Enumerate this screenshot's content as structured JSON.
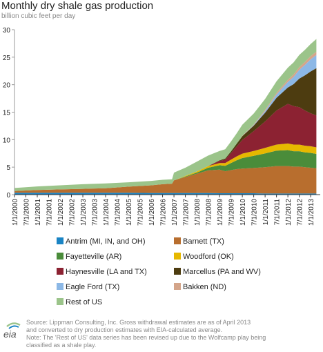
{
  "title": "Monthly dry shale gas production",
  "subtitle": "billion cubic feet per day",
  "logo_text": "eia",
  "footer": {
    "source_line1": "Source: Lippman Consulting, Inc. Gross withdrawal estimates are as of April 2013",
    "source_line2": "and converted to dry production estimates with EIA-calculated average.",
    "note_line1": "Note: The 'Rest of US' data series has been revised up due to the Wolfcamp play being",
    "note_line2": "classified as a shale play."
  },
  "chart_data": {
    "type": "area",
    "stacked": true,
    "title": "Monthly dry shale gas production",
    "ylabel": "billion cubic feet per day",
    "ylim": [
      0,
      30
    ],
    "yticks": [
      0,
      5,
      10,
      15,
      20,
      25,
      30
    ],
    "x_tick_labels": [
      "1/1/2000",
      "7/1/2000",
      "1/1/2001",
      "7/1/2001",
      "1/1/2002",
      "7/1/2002",
      "1/1/2003",
      "7/1/2003",
      "1/1/2004",
      "7/1/2004",
      "1/1/2005",
      "7/1/2005",
      "1/1/2006",
      "7/1/2006",
      "1/1/2007",
      "7/1/2007",
      "1/1/2008",
      "7/1/2008",
      "1/1/2009",
      "7/1/2009",
      "1/1/2010",
      "7/1/2010",
      "1/1/2011",
      "7/1/2011",
      "1/1/2012",
      "7/1/2012",
      "1/1/2013"
    ],
    "x": [
      "2000-01",
      "2001-01",
      "2002-01",
      "2003-01",
      "2004-01",
      "2005-01",
      "2006-01",
      "2006-07",
      "2006-12",
      "2007-01",
      "2007-07",
      "2008-01",
      "2008-07",
      "2009-01",
      "2009-04",
      "2009-07",
      "2009-10",
      "2010-01",
      "2010-07",
      "2011-01",
      "2011-07",
      "2012-01",
      "2012-04",
      "2012-07",
      "2012-10",
      "2013-01",
      "2013-04"
    ],
    "series": [
      {
        "name": "Antrim (MI, IN, and OH)",
        "color": "#1a84c4",
        "values": [
          0.35,
          0.35,
          0.35,
          0.35,
          0.35,
          0.35,
          0.3,
          0.3,
          0.3,
          0.3,
          0.3,
          0.3,
          0.3,
          0.25,
          0.25,
          0.25,
          0.25,
          0.25,
          0.25,
          0.2,
          0.2,
          0.2,
          0.2,
          0.2,
          0.2,
          0.2,
          0.2
        ]
      },
      {
        "name": "Barnett (TX)",
        "color": "#b86e2e",
        "values": [
          0.3,
          0.5,
          0.6,
          0.7,
          0.8,
          1.1,
          1.4,
          1.6,
          1.7,
          2.3,
          2.9,
          3.5,
          4.1,
          4.3,
          4.0,
          4.2,
          4.4,
          4.5,
          4.6,
          4.8,
          5.0,
          5.0,
          4.9,
          4.9,
          4.8,
          4.7,
          4.6
        ]
      },
      {
        "name": "Fayetteville (AR)",
        "color": "#4a8c3a",
        "values": [
          0,
          0,
          0,
          0,
          0,
          0,
          0,
          0,
          0,
          0,
          0.1,
          0.2,
          0.5,
          0.8,
          1.0,
          1.3,
          1.6,
          1.9,
          2.2,
          2.5,
          2.8,
          2.9,
          2.8,
          2.8,
          2.7,
          2.7,
          2.6
        ]
      },
      {
        "name": "Woodford (OK)",
        "color": "#e6b800",
        "values": [
          0,
          0,
          0,
          0,
          0,
          0,
          0,
          0,
          0,
          0,
          0.1,
          0.2,
          0.3,
          0.4,
          0.5,
          0.6,
          0.7,
          0.8,
          0.9,
          1.0,
          1.1,
          1.2,
          1.2,
          1.2,
          1.2,
          1.2,
          1.2
        ]
      },
      {
        "name": "Haynesville (LA and TX)",
        "color": "#8c2232",
        "values": [
          0,
          0,
          0,
          0,
          0,
          0,
          0,
          0,
          0,
          0,
          0,
          0,
          0,
          0.4,
          0.6,
          1.2,
          1.8,
          2.5,
          3.6,
          4.8,
          6.2,
          7.2,
          7.0,
          6.8,
          6.4,
          6.0,
          5.8
        ]
      },
      {
        "name": "Marcellus (PA and WV)",
        "color": "#4d3c10",
        "values": [
          0,
          0,
          0,
          0,
          0,
          0,
          0,
          0,
          0,
          0,
          0,
          0,
          0,
          0.1,
          0.2,
          0.3,
          0.5,
          0.7,
          1.0,
          1.6,
          2.3,
          3.0,
          4.0,
          5.2,
          6.4,
          7.6,
          8.6
        ]
      },
      {
        "name": "Eagle Ford (TX)",
        "color": "#8cb8e6",
        "values": [
          0,
          0,
          0,
          0,
          0,
          0,
          0,
          0,
          0,
          0,
          0,
          0,
          0,
          0,
          0,
          0,
          0,
          0,
          0.1,
          0.3,
          0.6,
          1.0,
          1.3,
          1.6,
          1.9,
          2.2,
          2.4
        ]
      },
      {
        "name": "Bakken (ND)",
        "color": "#d4a58a",
        "values": [
          0,
          0,
          0,
          0,
          0,
          0,
          0,
          0,
          0,
          0,
          0,
          0,
          0,
          0,
          0,
          0,
          0,
          0.05,
          0.1,
          0.2,
          0.3,
          0.4,
          0.45,
          0.5,
          0.55,
          0.6,
          0.6
        ]
      },
      {
        "name": "Rest of US",
        "color": "#9bc48a",
        "values": [
          0.55,
          0.65,
          0.75,
          0.85,
          0.9,
          0.8,
          0.8,
          0.8,
          0.8,
          1.4,
          1.5,
          1.8,
          1.9,
          1.7,
          1.7,
          1.8,
          1.9,
          2.0,
          2.0,
          2.0,
          2.1,
          2.2,
          2.2,
          2.2,
          2.2,
          2.2,
          2.3
        ]
      }
    ],
    "grid": false,
    "legend_position": "bottom"
  }
}
